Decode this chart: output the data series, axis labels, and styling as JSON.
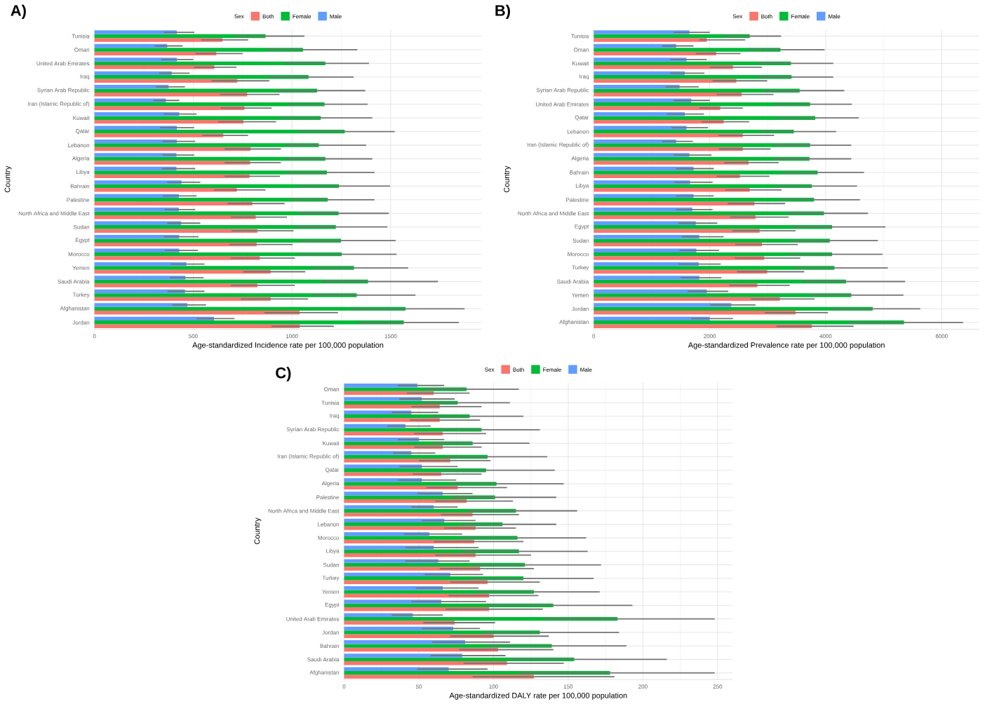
{
  "chart_data": [
    {
      "type": "bar",
      "orientation": "horizontal",
      "title": "A)",
      "xlabel": "Age-standardized Incidence rate per 100,000 population",
      "ylabel": "Country",
      "legend_title": "Sex",
      "legend": "top",
      "grid": true,
      "xlim": [
        0,
        1960
      ],
      "xticks": [
        0,
        500,
        1000,
        1500
      ],
      "categories": [
        "Tunisia",
        "Oman",
        "United Arab Emirates",
        "Iraq",
        "Syrian Arab Republic",
        "Iran (Islamic Republic of)",
        "Kuwait",
        "Qatar",
        "Lebanon",
        "Algeria",
        "Libya",
        "Bahrain",
        "Palestine",
        "North Africa and Middle East",
        "Sudan",
        "Egypt",
        "Morocco",
        "Yemen",
        "Saudi Arabia",
        "Turkey",
        "Afghanistan",
        "Jordan"
      ],
      "series": [
        {
          "name": "Both",
          "color": "#f8766d",
          "values": [
            648,
            617,
            607,
            723,
            773,
            759,
            754,
            652,
            790,
            788,
            785,
            721,
            799,
            816,
            825,
            821,
            837,
            892,
            825,
            892,
            1039,
            1039
          ],
          "errors": [
            [
              541,
              778
            ],
            [
              512,
              750
            ],
            [
              505,
              719
            ],
            [
              593,
              885
            ],
            [
              636,
              937
            ],
            [
              640,
              897
            ],
            [
              626,
              920
            ],
            [
              546,
              778
            ],
            [
              659,
              944
            ],
            [
              659,
              944
            ],
            [
              659,
              939
            ],
            [
              605,
              866
            ],
            [
              674,
              963
            ],
            [
              690,
              975
            ],
            [
              695,
              1008
            ],
            [
              683,
              1003
            ],
            [
              690,
              1015
            ],
            [
              754,
              1067
            ],
            [
              690,
              1015
            ],
            [
              742,
              1082
            ],
            [
              861,
              1233
            ],
            [
              897,
              1212
            ]
          ]
        },
        {
          "name": "Female",
          "color": "#00ba38",
          "values": [
            866,
            1056,
            1169,
            1084,
            1127,
            1165,
            1146,
            1267,
            1136,
            1169,
            1177,
            1238,
            1181,
            1236,
            1222,
            1248,
            1252,
            1314,
            1385,
            1328,
            1575,
            1566
          ],
          "errors": [
            [
              707,
              1063
            ],
            [
              873,
              1331
            ],
            [
              963,
              1390
            ],
            [
              885,
              1312
            ],
            [
              920,
              1371
            ],
            [
              980,
              1383
            ],
            [
              939,
              1407
            ],
            [
              1034,
              1520
            ],
            [
              968,
              1376
            ],
            [
              968,
              1407
            ],
            [
              968,
              1418
            ],
            [
              1034,
              1497
            ],
            [
              992,
              1418
            ],
            [
              1039,
              1490
            ],
            [
              1022,
              1483
            ],
            [
              1039,
              1525
            ],
            [
              1029,
              1530
            ],
            [
              1098,
              1589
            ],
            [
              1153,
              1739
            ],
            [
              1103,
              1625
            ],
            [
              1295,
              1874
            ],
            [
              1335,
              1845
            ]
          ]
        },
        {
          "name": "Male",
          "color": "#619cff",
          "values": [
            417,
            368,
            417,
            391,
            375,
            361,
            429,
            417,
            417,
            415,
            415,
            441,
            427,
            427,
            439,
            429,
            429,
            465,
            460,
            458,
            470,
            605
          ],
          "errors": [
            [
              351,
              505
            ],
            [
              304,
              446
            ],
            [
              339,
              500
            ],
            [
              327,
              482
            ],
            [
              311,
              458
            ],
            [
              299,
              429
            ],
            [
              351,
              517
            ],
            [
              332,
              505
            ],
            [
              346,
              510
            ],
            [
              346,
              505
            ],
            [
              342,
              510
            ],
            [
              368,
              536
            ],
            [
              346,
              517
            ],
            [
              356,
              510
            ],
            [
              368,
              536
            ],
            [
              351,
              527
            ],
            [
              356,
              524
            ],
            [
              387,
              557
            ],
            [
              382,
              553
            ],
            [
              370,
              557
            ],
            [
              394,
              565
            ],
            [
              517,
              709
            ]
          ]
        }
      ]
    },
    {
      "type": "bar",
      "orientation": "horizontal",
      "title": "B)",
      "xlabel": "Age-standardized Prevalence rate per 100,000 population",
      "ylabel": "Country",
      "legend_title": "Sex",
      "legend": "top",
      "grid": true,
      "xlim": [
        0,
        6650
      ],
      "xticks": [
        0,
        2000,
        4000,
        6000
      ],
      "categories": [
        "Tunisia",
        "Oman",
        "Kuwait",
        "Iraq",
        "Syrian Arab Republic",
        "United Arab Emirates",
        "Qatar",
        "Lebanon",
        "Iran (Islamic Republic of)",
        "Algeria",
        "Bahrain",
        "Libya",
        "Palestine",
        "North Africa and Middle East",
        "Egypt",
        "Sudan",
        "Morocco",
        "Turkey",
        "Saudi Arabia",
        "Yemen",
        "Jordan",
        "Afghanistan"
      ],
      "series": [
        {
          "name": "Both",
          "color": "#f8766d",
          "values": [
            1950,
            2110,
            2400,
            2460,
            2550,
            2180,
            2240,
            2570,
            2570,
            2670,
            2520,
            2690,
            2770,
            2790,
            2860,
            2900,
            2940,
            2990,
            2820,
            3210,
            3480,
            3760
          ],
          "errors": [
            [
              1820,
              2610
            ],
            [
              1760,
              2530
            ],
            [
              2000,
              2900
            ],
            [
              2050,
              2990
            ],
            [
              2120,
              3100
            ],
            [
              1820,
              2570
            ],
            [
              1860,
              2680
            ],
            [
              2150,
              3110
            ],
            [
              2160,
              3050
            ],
            [
              2250,
              3190
            ],
            [
              2120,
              3030
            ],
            [
              2270,
              3240
            ],
            [
              2310,
              3300
            ],
            [
              2350,
              3360
            ],
            [
              2390,
              3480
            ],
            [
              2440,
              3520
            ],
            [
              2430,
              3560
            ],
            [
              2470,
              3630
            ],
            [
              2340,
              3380
            ],
            [
              2710,
              3810
            ],
            [
              2950,
              4040
            ],
            [
              3150,
              4480
            ]
          ]
        },
        {
          "name": "Female",
          "color": "#00ba38",
          "values": [
            2690,
            3220,
            3400,
            3410,
            3550,
            3730,
            3820,
            3450,
            3730,
            3720,
            3860,
            3760,
            3800,
            3970,
            4110,
            4070,
            4110,
            4150,
            4350,
            4440,
            4810,
            5350
          ],
          "errors": [
            [
              2230,
              3230
            ],
            [
              2670,
              3980
            ],
            [
              2830,
              4130
            ],
            [
              2830,
              4130
            ],
            [
              2930,
              4320
            ],
            [
              3110,
              4450
            ],
            [
              3150,
              4570
            ],
            [
              2870,
              4180
            ],
            [
              3110,
              4440
            ],
            [
              3110,
              4440
            ],
            [
              3240,
              4660
            ],
            [
              3120,
              4540
            ],
            [
              3210,
              4590
            ],
            [
              3340,
              4730
            ],
            [
              3440,
              5030
            ],
            [
              3400,
              4900
            ],
            [
              3360,
              4980
            ],
            [
              3450,
              5070
            ],
            [
              3600,
              5370
            ],
            [
              3730,
              5340
            ],
            [
              4080,
              5630
            ],
            [
              4400,
              6370
            ]
          ]
        },
        {
          "name": "Male",
          "color": "#619cff",
          "values": [
            1650,
            1420,
            1600,
            1570,
            1480,
            1680,
            1570,
            1600,
            1420,
            1650,
            1720,
            1660,
            1720,
            1700,
            1760,
            1820,
            1770,
            1810,
            1820,
            1950,
            2370,
            2000
          ],
          "errors": [
            [
              1380,
              2000
            ],
            [
              1180,
              1720
            ],
            [
              1320,
              1950
            ],
            [
              1320,
              1910
            ],
            [
              1240,
              1810
            ],
            [
              1380,
              2000
            ],
            [
              1260,
              1900
            ],
            [
              1340,
              1970
            ],
            [
              1180,
              1710
            ],
            [
              1380,
              2030
            ],
            [
              1420,
              2070
            ],
            [
              1390,
              2050
            ],
            [
              1420,
              2070
            ],
            [
              1420,
              2050
            ],
            [
              1460,
              2130
            ],
            [
              1520,
              2240
            ],
            [
              1480,
              2160
            ],
            [
              1460,
              2190
            ],
            [
              1500,
              2200
            ],
            [
              1620,
              2320
            ],
            [
              2010,
              2790
            ],
            [
              1680,
              2400
            ]
          ]
        }
      ]
    },
    {
      "type": "bar",
      "orientation": "horizontal",
      "title": "C)",
      "xlabel": "Age-standardized DALY rate per 100,000 population",
      "ylabel": "Country",
      "legend_title": "Sex",
      "legend": "top",
      "grid": true,
      "xlim": [
        0,
        260
      ],
      "xticks": [
        0,
        50,
        100,
        150,
        200,
        250
      ],
      "categories": [
        "Oman",
        "Tunisia",
        "Iraq",
        "Syrian Arab Republic",
        "Kuwait",
        "Iran (Islamic Republic of)",
        "Qatar",
        "Algeria",
        "Palestine",
        "North Africa and Middle East",
        "Lebanon",
        "Morocco",
        "Libya",
        "Sudan",
        "Turkey",
        "Yemen",
        "Egypt",
        "United Arab Emirates",
        "Jordan",
        "Bahrain",
        "Saudi Arabia",
        "Afghanistan"
      ],
      "series": [
        {
          "name": "Both",
          "color": "#f8766d",
          "values": [
            60,
            64,
            64,
            66,
            66,
            71,
            65,
            76,
            82,
            86,
            88,
            87,
            88,
            91,
            96,
            97,
            97,
            74,
            100,
            103,
            109,
            127
          ],
          "errors": [
            [
              42,
              84
            ],
            [
              45,
              92
            ],
            [
              44,
              91
            ],
            [
              47,
              95
            ],
            [
              47,
              92
            ],
            [
              50,
              98
            ],
            [
              46,
              92
            ],
            [
              55,
              109
            ],
            [
              61,
              113
            ],
            [
              65,
              117
            ],
            [
              67,
              115
            ],
            [
              60,
              120
            ],
            [
              61,
              125
            ],
            [
              64,
              127
            ],
            [
              71,
              131
            ],
            [
              70,
              130
            ],
            [
              68,
              133
            ],
            [
              53,
              101
            ],
            [
              71,
              137
            ],
            [
              77,
              140
            ],
            [
              80,
              147
            ],
            [
              86,
              181
            ]
          ]
        },
        {
          "name": "Female",
          "color": "#00ba38",
          "values": [
            82,
            76,
            84,
            92,
            86,
            96,
            95,
            102,
            101,
            115,
            106,
            116,
            117,
            121,
            120,
            127,
            140,
            183,
            131,
            139,
            154,
            178
          ],
          "errors": [
            [
              55,
              117
            ],
            [
              52,
              111
            ],
            [
              58,
              120
            ],
            [
              64,
              131
            ],
            [
              60,
              124
            ],
            [
              67,
              136
            ],
            [
              66,
              141
            ],
            [
              71,
              147
            ],
            [
              72,
              142
            ],
            [
              83,
              156
            ],
            [
              78,
              142
            ],
            [
              78,
              162
            ],
            [
              79,
              163
            ],
            [
              86,
              172
            ],
            [
              84,
              167
            ],
            [
              89,
              171
            ],
            [
              96,
              193
            ],
            [
              134,
              248
            ],
            [
              93,
              184
            ],
            [
              96,
              189
            ],
            [
              111,
              216
            ],
            [
              118,
              248
            ]
          ]
        },
        {
          "name": "Male",
          "color": "#619cff",
          "values": [
            49,
            52,
            45,
            41,
            50,
            45,
            52,
            52,
            66,
            60,
            67,
            57,
            60,
            63,
            71,
            66,
            65,
            46,
            73,
            81,
            79,
            70
          ],
          "errors": [
            [
              36,
              67
            ],
            [
              37,
              74
            ],
            [
              32,
              63
            ],
            [
              29,
              58
            ],
            [
              36,
              67
            ],
            [
              33,
              61
            ],
            [
              37,
              76
            ],
            [
              36,
              75
            ],
            [
              49,
              86
            ],
            [
              45,
              76
            ],
            [
              52,
              88
            ],
            [
              40,
              79
            ],
            [
              41,
              90
            ],
            [
              41,
              84
            ],
            [
              54,
              93
            ],
            [
              48,
              90
            ],
            [
              45,
              95
            ],
            [
              32,
              66
            ],
            [
              52,
              91
            ],
            [
              59,
              111
            ],
            [
              58,
              108
            ],
            [
              49,
              96
            ]
          ]
        }
      ]
    }
  ]
}
